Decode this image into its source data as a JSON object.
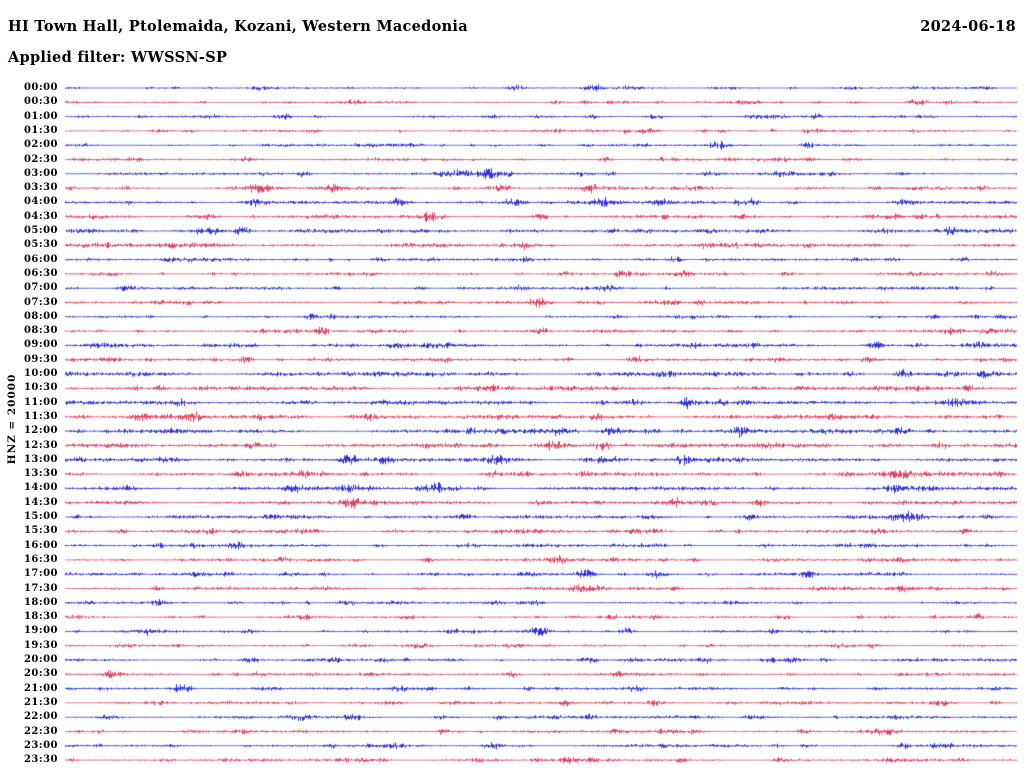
{
  "header": {
    "title": "HI Town Hall, Ptolemaida, Kozani, Western Macedonia",
    "date": "2024-06-18",
    "filter": "Applied filter: WWSSN-SP"
  },
  "chart_data": {
    "type": "line",
    "kind": "helicorder-seismogram",
    "title": "HI Town Hall, Ptolemaida, Kozani, Western Macedonia",
    "date": "2024-06-18",
    "filter": "WWSSN-SP",
    "y_axis_label": "HNZ = 20000",
    "row_interval_minutes": 30,
    "rows_count": 48,
    "time_range": [
      "00:00",
      "23:30"
    ],
    "legend_position": "none",
    "grid": false,
    "colors": {
      "blue": "#0000CD",
      "red": "#DC143C"
    },
    "rows": [
      {
        "time": "00:00",
        "color": "blue",
        "noise": 1.2,
        "seed": 7,
        "bursts": [
          [
            0.205,
            2.5,
            6
          ],
          [
            0.475,
            3,
            5
          ],
          [
            0.56,
            2,
            4
          ]
        ]
      },
      {
        "time": "00:30",
        "color": "red",
        "noise": 1.2,
        "seed": 20,
        "bursts": [
          [
            0.3,
            2,
            5
          ],
          [
            0.55,
            2.5,
            5
          ],
          [
            0.895,
            4,
            6
          ]
        ]
      },
      {
        "time": "01:00",
        "color": "blue",
        "noise": 1.2,
        "seed": 33,
        "bursts": [
          [
            0.45,
            2,
            5
          ],
          [
            0.62,
            2.5,
            5
          ],
          [
            0.72,
            2,
            4
          ]
        ]
      },
      {
        "time": "01:30",
        "color": "red",
        "noise": 1.3,
        "seed": 46,
        "bursts": [
          [
            0.26,
            2.5,
            4
          ],
          [
            0.61,
            3,
            6
          ],
          [
            0.785,
            3.5,
            5
          ]
        ]
      },
      {
        "time": "02:00",
        "color": "blue",
        "noise": 1.3,
        "seed": 59,
        "bursts": [
          [
            0.55,
            2,
            5
          ],
          [
            0.685,
            4,
            7
          ],
          [
            0.78,
            2.5,
            5
          ]
        ]
      },
      {
        "time": "02:30",
        "color": "red",
        "noise": 1.4,
        "seed": 72,
        "bursts": [
          [
            0.19,
            3,
            6
          ],
          [
            0.57,
            2.5,
            5
          ],
          [
            0.75,
            2,
            4
          ]
        ]
      },
      {
        "time": "03:00",
        "color": "blue",
        "noise": 1.6,
        "seed": 85,
        "bursts": [
          [
            0.25,
            3,
            6
          ],
          [
            0.415,
            5,
            10
          ],
          [
            0.445,
            4,
            8
          ],
          [
            0.75,
            2.5,
            5
          ]
        ]
      },
      {
        "time": "03:30",
        "color": "red",
        "noise": 1.8,
        "seed": 98,
        "bursts": [
          [
            0.2,
            3.5,
            7
          ],
          [
            0.28,
            3,
            6
          ],
          [
            0.46,
            4,
            8
          ],
          [
            0.55,
            2.5,
            5
          ],
          [
            0.965,
            3,
            5
          ]
        ]
      },
      {
        "time": "04:00",
        "color": "blue",
        "noise": 1.8,
        "seed": 111,
        "bursts": [
          [
            0.2,
            4,
            8
          ],
          [
            0.35,
            3,
            6
          ],
          [
            0.47,
            3.5,
            7
          ],
          [
            0.565,
            3,
            8
          ],
          [
            0.625,
            4.5,
            6
          ],
          [
            0.72,
            2.5,
            5
          ],
          [
            0.88,
            3,
            6
          ]
        ]
      },
      {
        "time": "04:30",
        "color": "red",
        "noise": 1.8,
        "seed": 124,
        "bursts": [
          [
            0.15,
            3,
            6
          ],
          [
            0.385,
            5.5,
            8
          ],
          [
            0.5,
            3,
            6
          ],
          [
            0.71,
            2.5,
            5
          ],
          [
            0.9,
            2.5,
            5
          ]
        ]
      },
      {
        "time": "05:00",
        "color": "blue",
        "noise": 2.2,
        "seed": 137,
        "bursts": [
          [
            0.185,
            3.5,
            6
          ],
          [
            0.47,
            2.5,
            5
          ],
          [
            0.86,
            2.5,
            5
          ],
          [
            0.93,
            3,
            5
          ]
        ]
      },
      {
        "time": "05:30",
        "color": "red",
        "noise": 2.2,
        "seed": 150,
        "bursts": [
          [
            0.48,
            3.5,
            6
          ],
          [
            0.67,
            2.5,
            5
          ]
        ]
      },
      {
        "time": "06:00",
        "color": "blue",
        "noise": 1.6,
        "seed": 163,
        "bursts": [
          [
            0.33,
            2.5,
            5
          ],
          [
            0.64,
            2.5,
            5
          ],
          [
            0.87,
            2.5,
            5
          ]
        ]
      },
      {
        "time": "06:30",
        "color": "red",
        "noise": 1.6,
        "seed": 176,
        "bursts": [
          [
            0.585,
            3.5,
            7
          ],
          [
            0.65,
            3,
            5
          ],
          [
            0.975,
            3,
            4
          ]
        ]
      },
      {
        "time": "07:00",
        "color": "blue",
        "noise": 1.6,
        "seed": 189,
        "bursts": [
          [
            0.48,
            3.5,
            6
          ],
          [
            0.57,
            2.5,
            5
          ]
        ]
      },
      {
        "time": "07:30",
        "color": "red",
        "noise": 1.6,
        "seed": 202,
        "bursts": [
          [
            0.5,
            4,
            7
          ],
          [
            0.64,
            2.5,
            5
          ]
        ]
      },
      {
        "time": "08:00",
        "color": "blue",
        "noise": 1.4,
        "seed": 215,
        "bursts": [
          [
            0.26,
            2,
            4
          ],
          [
            0.58,
            2,
            4
          ]
        ]
      },
      {
        "time": "08:30",
        "color": "red",
        "noise": 1.8,
        "seed": 228,
        "bursts": [
          [
            0.27,
            3.5,
            6
          ],
          [
            0.5,
            2.5,
            5
          ],
          [
            0.93,
            2.5,
            5
          ]
        ]
      },
      {
        "time": "09:00",
        "color": "blue",
        "noise": 2.0,
        "seed": 241,
        "bursts": [
          [
            0.18,
            2.5,
            5
          ],
          [
            0.35,
            2.5,
            5
          ],
          [
            0.85,
            3.5,
            6
          ],
          [
            0.96,
            3,
            5
          ]
        ]
      },
      {
        "time": "09:30",
        "color": "red",
        "noise": 1.8,
        "seed": 254,
        "bursts": [
          [
            0.19,
            3,
            5
          ],
          [
            0.6,
            3.5,
            6
          ]
        ]
      },
      {
        "time": "10:00",
        "color": "blue",
        "noise": 2.4,
        "seed": 267,
        "bursts": [
          [
            0.63,
            3.5,
            6
          ],
          [
            0.88,
            4,
            6
          ],
          [
            0.97,
            3,
            5
          ]
        ]
      },
      {
        "time": "10:30",
        "color": "red",
        "noise": 2.4,
        "seed": 280,
        "bursts": [
          [
            0.1,
            3,
            5
          ],
          [
            0.45,
            3,
            5
          ],
          [
            0.95,
            3.5,
            5
          ]
        ]
      },
      {
        "time": "11:00",
        "color": "blue",
        "noise": 2.5,
        "seed": 293,
        "bursts": [
          [
            0.12,
            3,
            5
          ],
          [
            0.6,
            3,
            5
          ],
          [
            0.655,
            3.5,
            5
          ],
          [
            0.935,
            4,
            6
          ]
        ]
      },
      {
        "time": "11:30",
        "color": "red",
        "noise": 2.5,
        "seed": 306,
        "bursts": [
          [
            0.08,
            3.5,
            6
          ],
          [
            0.135,
            4,
            6
          ],
          [
            0.32,
            3.5,
            6
          ],
          [
            0.56,
            3,
            5
          ]
        ]
      },
      {
        "time": "12:00",
        "color": "blue",
        "noise": 2.4,
        "seed": 319,
        "bursts": [
          [
            0.52,
            4,
            7
          ],
          [
            0.575,
            4.5,
            7
          ],
          [
            0.71,
            3.5,
            6
          ],
          [
            0.88,
            4,
            6
          ]
        ]
      },
      {
        "time": "12:30",
        "color": "red",
        "noise": 2.4,
        "seed": 332,
        "bursts": [
          [
            0.2,
            3.5,
            6
          ],
          [
            0.51,
            4.5,
            8
          ],
          [
            0.565,
            4,
            6
          ],
          [
            0.92,
            4,
            6
          ]
        ]
      },
      {
        "time": "13:00",
        "color": "blue",
        "noise": 2.4,
        "seed": 345,
        "bursts": [
          [
            0.3,
            4,
            7
          ],
          [
            0.455,
            4.5,
            8
          ],
          [
            0.575,
            4.5,
            7
          ],
          [
            0.65,
            4.5,
            7
          ]
        ]
      },
      {
        "time": "13:30",
        "color": "red",
        "noise": 2.2,
        "seed": 358,
        "bursts": [
          [
            0.25,
            3,
            5
          ],
          [
            0.48,
            3,
            5
          ],
          [
            0.88,
            4,
            7
          ]
        ]
      },
      {
        "time": "14:00",
        "color": "blue",
        "noise": 2.2,
        "seed": 371,
        "bursts": [
          [
            0.24,
            3.5,
            6
          ],
          [
            0.3,
            3.5,
            6
          ],
          [
            0.39,
            5.5,
            9
          ],
          [
            0.87,
            3.5,
            6
          ]
        ]
      },
      {
        "time": "14:30",
        "color": "red",
        "noise": 2.2,
        "seed": 384,
        "bursts": [
          [
            0.3,
            3.5,
            6
          ],
          [
            0.5,
            3.5,
            6
          ],
          [
            0.73,
            3,
            5
          ]
        ]
      },
      {
        "time": "15:00",
        "color": "blue",
        "noise": 2.0,
        "seed": 397,
        "bursts": [
          [
            0.42,
            3.5,
            6
          ],
          [
            0.72,
            3,
            5
          ],
          [
            0.88,
            4.5,
            7
          ]
        ]
      },
      {
        "time": "15:30",
        "color": "red",
        "noise": 2.0,
        "seed": 410,
        "bursts": [
          [
            0.25,
            2.5,
            5
          ],
          [
            0.6,
            2.5,
            5
          ]
        ]
      },
      {
        "time": "16:00",
        "color": "blue",
        "noise": 1.8,
        "seed": 423,
        "bursts": [
          [
            0.18,
            3.5,
            6
          ],
          [
            0.42,
            3,
            5
          ]
        ]
      },
      {
        "time": "16:30",
        "color": "red",
        "noise": 1.8,
        "seed": 436,
        "bursts": [
          [
            0.52,
            4,
            7
          ],
          [
            0.575,
            3,
            5
          ]
        ]
      },
      {
        "time": "17:00",
        "color": "blue",
        "noise": 1.8,
        "seed": 449,
        "bursts": [
          [
            0.55,
            3.5,
            6
          ],
          [
            0.62,
            3,
            5
          ],
          [
            0.78,
            3,
            5
          ]
        ]
      },
      {
        "time": "17:30",
        "color": "red",
        "noise": 1.8,
        "seed": 462,
        "bursts": [
          [
            0.55,
            3,
            5
          ],
          [
            0.88,
            4,
            6
          ]
        ]
      },
      {
        "time": "18:00",
        "color": "blue",
        "noise": 1.4,
        "seed": 475,
        "bursts": [
          [
            0.3,
            2,
            4
          ],
          [
            0.7,
            2,
            4
          ]
        ]
      },
      {
        "time": "18:30",
        "color": "red",
        "noise": 1.4,
        "seed": 488,
        "bursts": [
          [
            0.25,
            2,
            4
          ],
          [
            0.62,
            2,
            4
          ]
        ]
      },
      {
        "time": "19:00",
        "color": "blue",
        "noise": 1.5,
        "seed": 501,
        "bursts": [
          [
            0.495,
            4.5,
            7
          ],
          [
            0.59,
            3,
            5
          ]
        ]
      },
      {
        "time": "19:30",
        "color": "red",
        "noise": 1.4,
        "seed": 514,
        "bursts": [
          [
            0.3,
            2,
            4
          ],
          [
            0.85,
            2,
            4
          ]
        ]
      },
      {
        "time": "20:00",
        "color": "blue",
        "noise": 1.6,
        "seed": 527,
        "bursts": [
          [
            0.2,
            3,
            5
          ],
          [
            0.55,
            3.5,
            6
          ],
          [
            0.67,
            3,
            5
          ],
          [
            0.8,
            2.5,
            5
          ]
        ]
      },
      {
        "time": "20:30",
        "color": "red",
        "noise": 1.6,
        "seed": 540,
        "bursts": [
          [
            0.05,
            3.5,
            6
          ],
          [
            0.47,
            3.5,
            6
          ],
          [
            0.58,
            2.5,
            5
          ]
        ]
      },
      {
        "time": "21:00",
        "color": "blue",
        "noise": 1.6,
        "seed": 553,
        "bursts": [
          [
            0.12,
            4.5,
            8
          ],
          [
            0.35,
            3,
            5
          ],
          [
            0.6,
            2.5,
            5
          ]
        ]
      },
      {
        "time": "21:30",
        "color": "red",
        "noise": 1.6,
        "seed": 566,
        "bursts": [
          [
            0.35,
            2.5,
            5
          ],
          [
            0.62,
            3.5,
            6
          ],
          [
            0.92,
            2.5,
            5
          ]
        ]
      },
      {
        "time": "22:00",
        "color": "blue",
        "noise": 1.6,
        "seed": 579,
        "bursts": [
          [
            0.3,
            2.5,
            5
          ],
          [
            0.55,
            2.5,
            5
          ],
          [
            0.72,
            2.5,
            5
          ]
        ]
      },
      {
        "time": "22:30",
        "color": "red",
        "noise": 1.6,
        "seed": 592,
        "bursts": [
          [
            0.4,
            2.5,
            5
          ],
          [
            0.66,
            3,
            5
          ],
          [
            0.86,
            4,
            6
          ]
        ]
      },
      {
        "time": "23:00",
        "color": "blue",
        "noise": 1.6,
        "seed": 605,
        "bursts": [
          [
            0.45,
            3.5,
            6
          ],
          [
            0.78,
            2.5,
            5
          ],
          [
            0.88,
            3.5,
            6
          ]
        ]
      },
      {
        "time": "23:30",
        "color": "red",
        "noise": 1.6,
        "seed": 618,
        "bursts": [
          [
            0.53,
            3.5,
            6
          ],
          [
            0.75,
            2.5,
            5
          ]
        ]
      }
    ]
  }
}
